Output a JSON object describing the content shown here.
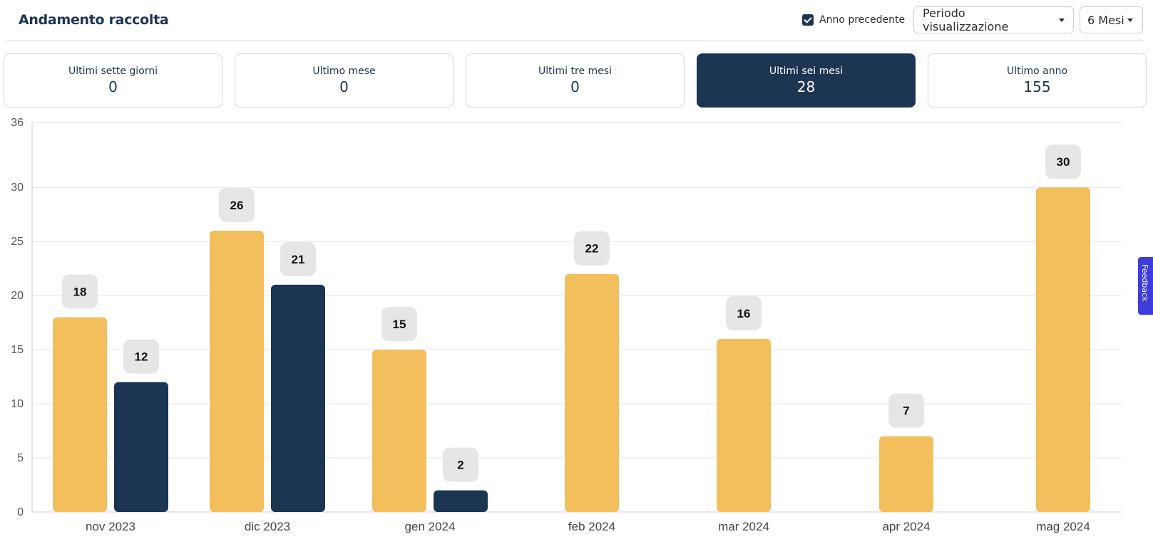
{
  "header": {
    "title": "Andamento raccolta",
    "checkbox_label": "Anno precedente",
    "checkbox_checked": true,
    "period_dropdown": "Periodo visualizzazione",
    "months_dropdown": "6 Mesi"
  },
  "cards": [
    {
      "label": "Ultimi sette giorni",
      "value": "0",
      "active": false
    },
    {
      "label": "Ultimo mese",
      "value": "0",
      "active": false
    },
    {
      "label": "Ultimi tre mesi",
      "value": "0",
      "active": false
    },
    {
      "label": "Ultimi sei mesi",
      "value": "28",
      "active": true
    },
    {
      "label": "Ultimo anno",
      "value": "155",
      "active": false
    }
  ],
  "feedback_label": "Feedback",
  "colors": {
    "primary": "#1b3552",
    "accent": "#f3bf5c",
    "label_bg": "#e6e6e6"
  },
  "chart_data": {
    "type": "bar",
    "categories": [
      "nov 2023",
      "dic 2023",
      "gen 2024",
      "feb 2024",
      "mar 2024",
      "apr 2024",
      "mag 2024"
    ],
    "series": [
      {
        "color": "#f3bf5c",
        "values": [
          18,
          26,
          15,
          22,
          16,
          7,
          30
        ]
      },
      {
        "color": "#1b3552",
        "values": [
          12,
          21,
          2,
          null,
          null,
          null,
          null
        ]
      }
    ],
    "yticks": [
      0,
      5,
      10,
      15,
      20,
      25,
      30,
      36
    ],
    "ylim": [
      0,
      36
    ],
    "grid": true,
    "data_labels": true
  }
}
